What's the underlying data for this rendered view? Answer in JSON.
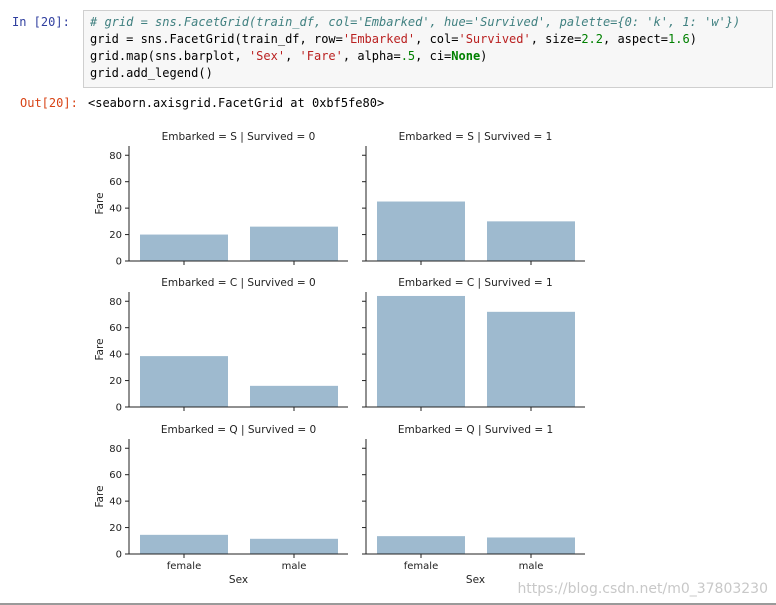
{
  "notebook": {
    "in_prompt": "In  [20]:",
    "out_prompt": "Out[20]:",
    "code": {
      "line1": "# grid = sns.FacetGrid(train_df, col='Embarked', hue='Survived', palette={0: 'k', 1: 'w'})",
      "line2_a": "grid = sns.FacetGrid(train_df, row=",
      "line2_s1": "'Embarked'",
      "line2_b": ", col=",
      "line2_s2": "'Survived'",
      "line2_c": ", size=",
      "line2_n1": "2.2",
      "line2_d": ", aspect=",
      "line2_n2": "1.6",
      "line2_e": ")",
      "line3_a": "grid.map(sns.barplot, ",
      "line3_s1": "'Sex'",
      "line3_b": ", ",
      "line3_s2": "'Fare'",
      "line3_c": ", alpha=",
      "line3_n": ".5",
      "line3_d": ", ci=",
      "line3_kw": "None",
      "line3_e": ")",
      "line4": "grid.add_legend()"
    },
    "output": "<seaborn.axisgrid.FacetGrid at 0xbf5fe80>"
  },
  "watermark": "https://blog.csdn.net/m0_37803230",
  "chart_data": {
    "type": "bar",
    "bar_color": "#9ebacf",
    "categories": [
      "female",
      "male"
    ],
    "ylim": [
      0,
      87
    ],
    "yticks": [
      0,
      20,
      40,
      60,
      80
    ],
    "ylabel": "Fare",
    "xlabel": "Sex",
    "panels": [
      {
        "title": "Embarked = S | Survived = 0",
        "values": [
          20,
          26
        ]
      },
      {
        "title": "Embarked = S | Survived = 1",
        "values": [
          45,
          30
        ]
      },
      {
        "title": "Embarked = C | Survived = 0",
        "values": [
          38.5,
          16
        ]
      },
      {
        "title": "Embarked = C | Survived = 1",
        "values": [
          84,
          72
        ]
      },
      {
        "title": "Embarked = Q | Survived = 0",
        "values": [
          14.5,
          11.5
        ]
      },
      {
        "title": "Embarked = Q | Survived = 1",
        "values": [
          13.5,
          12.5
        ]
      }
    ]
  }
}
